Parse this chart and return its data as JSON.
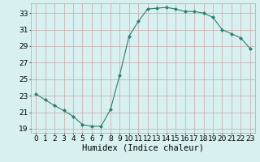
{
  "x": [
    0,
    1,
    2,
    3,
    4,
    5,
    6,
    7,
    8,
    9,
    10,
    11,
    12,
    13,
    14,
    15,
    16,
    17,
    18,
    19,
    20,
    21,
    22,
    23
  ],
  "y": [
    23.2,
    22.5,
    21.8,
    21.2,
    20.5,
    19.5,
    19.3,
    19.3,
    21.3,
    25.5,
    30.2,
    32.0,
    33.5,
    33.6,
    33.7,
    33.5,
    33.2,
    33.2,
    33.0,
    32.5,
    31.0,
    30.5,
    30.0,
    28.7
  ],
  "line_color": "#2d7d6e",
  "marker": "D",
  "marker_size": 2.0,
  "bg_color": "#d8f0f0",
  "grid_major_color": "#c8a8a8",
  "grid_minor_color": "#ddd0d0",
  "xlabel": "Humidex (Indice chaleur)",
  "xlabel_fontsize": 7.5,
  "tick_fontsize": 6.5,
  "ylim": [
    18.5,
    34.2
  ],
  "yticks": [
    19,
    21,
    23,
    25,
    27,
    29,
    31,
    33
  ],
  "xlim": [
    -0.5,
    23.5
  ],
  "xticks": [
    0,
    1,
    2,
    3,
    4,
    5,
    6,
    7,
    8,
    9,
    10,
    11,
    12,
    13,
    14,
    15,
    16,
    17,
    18,
    19,
    20,
    21,
    22,
    23
  ]
}
